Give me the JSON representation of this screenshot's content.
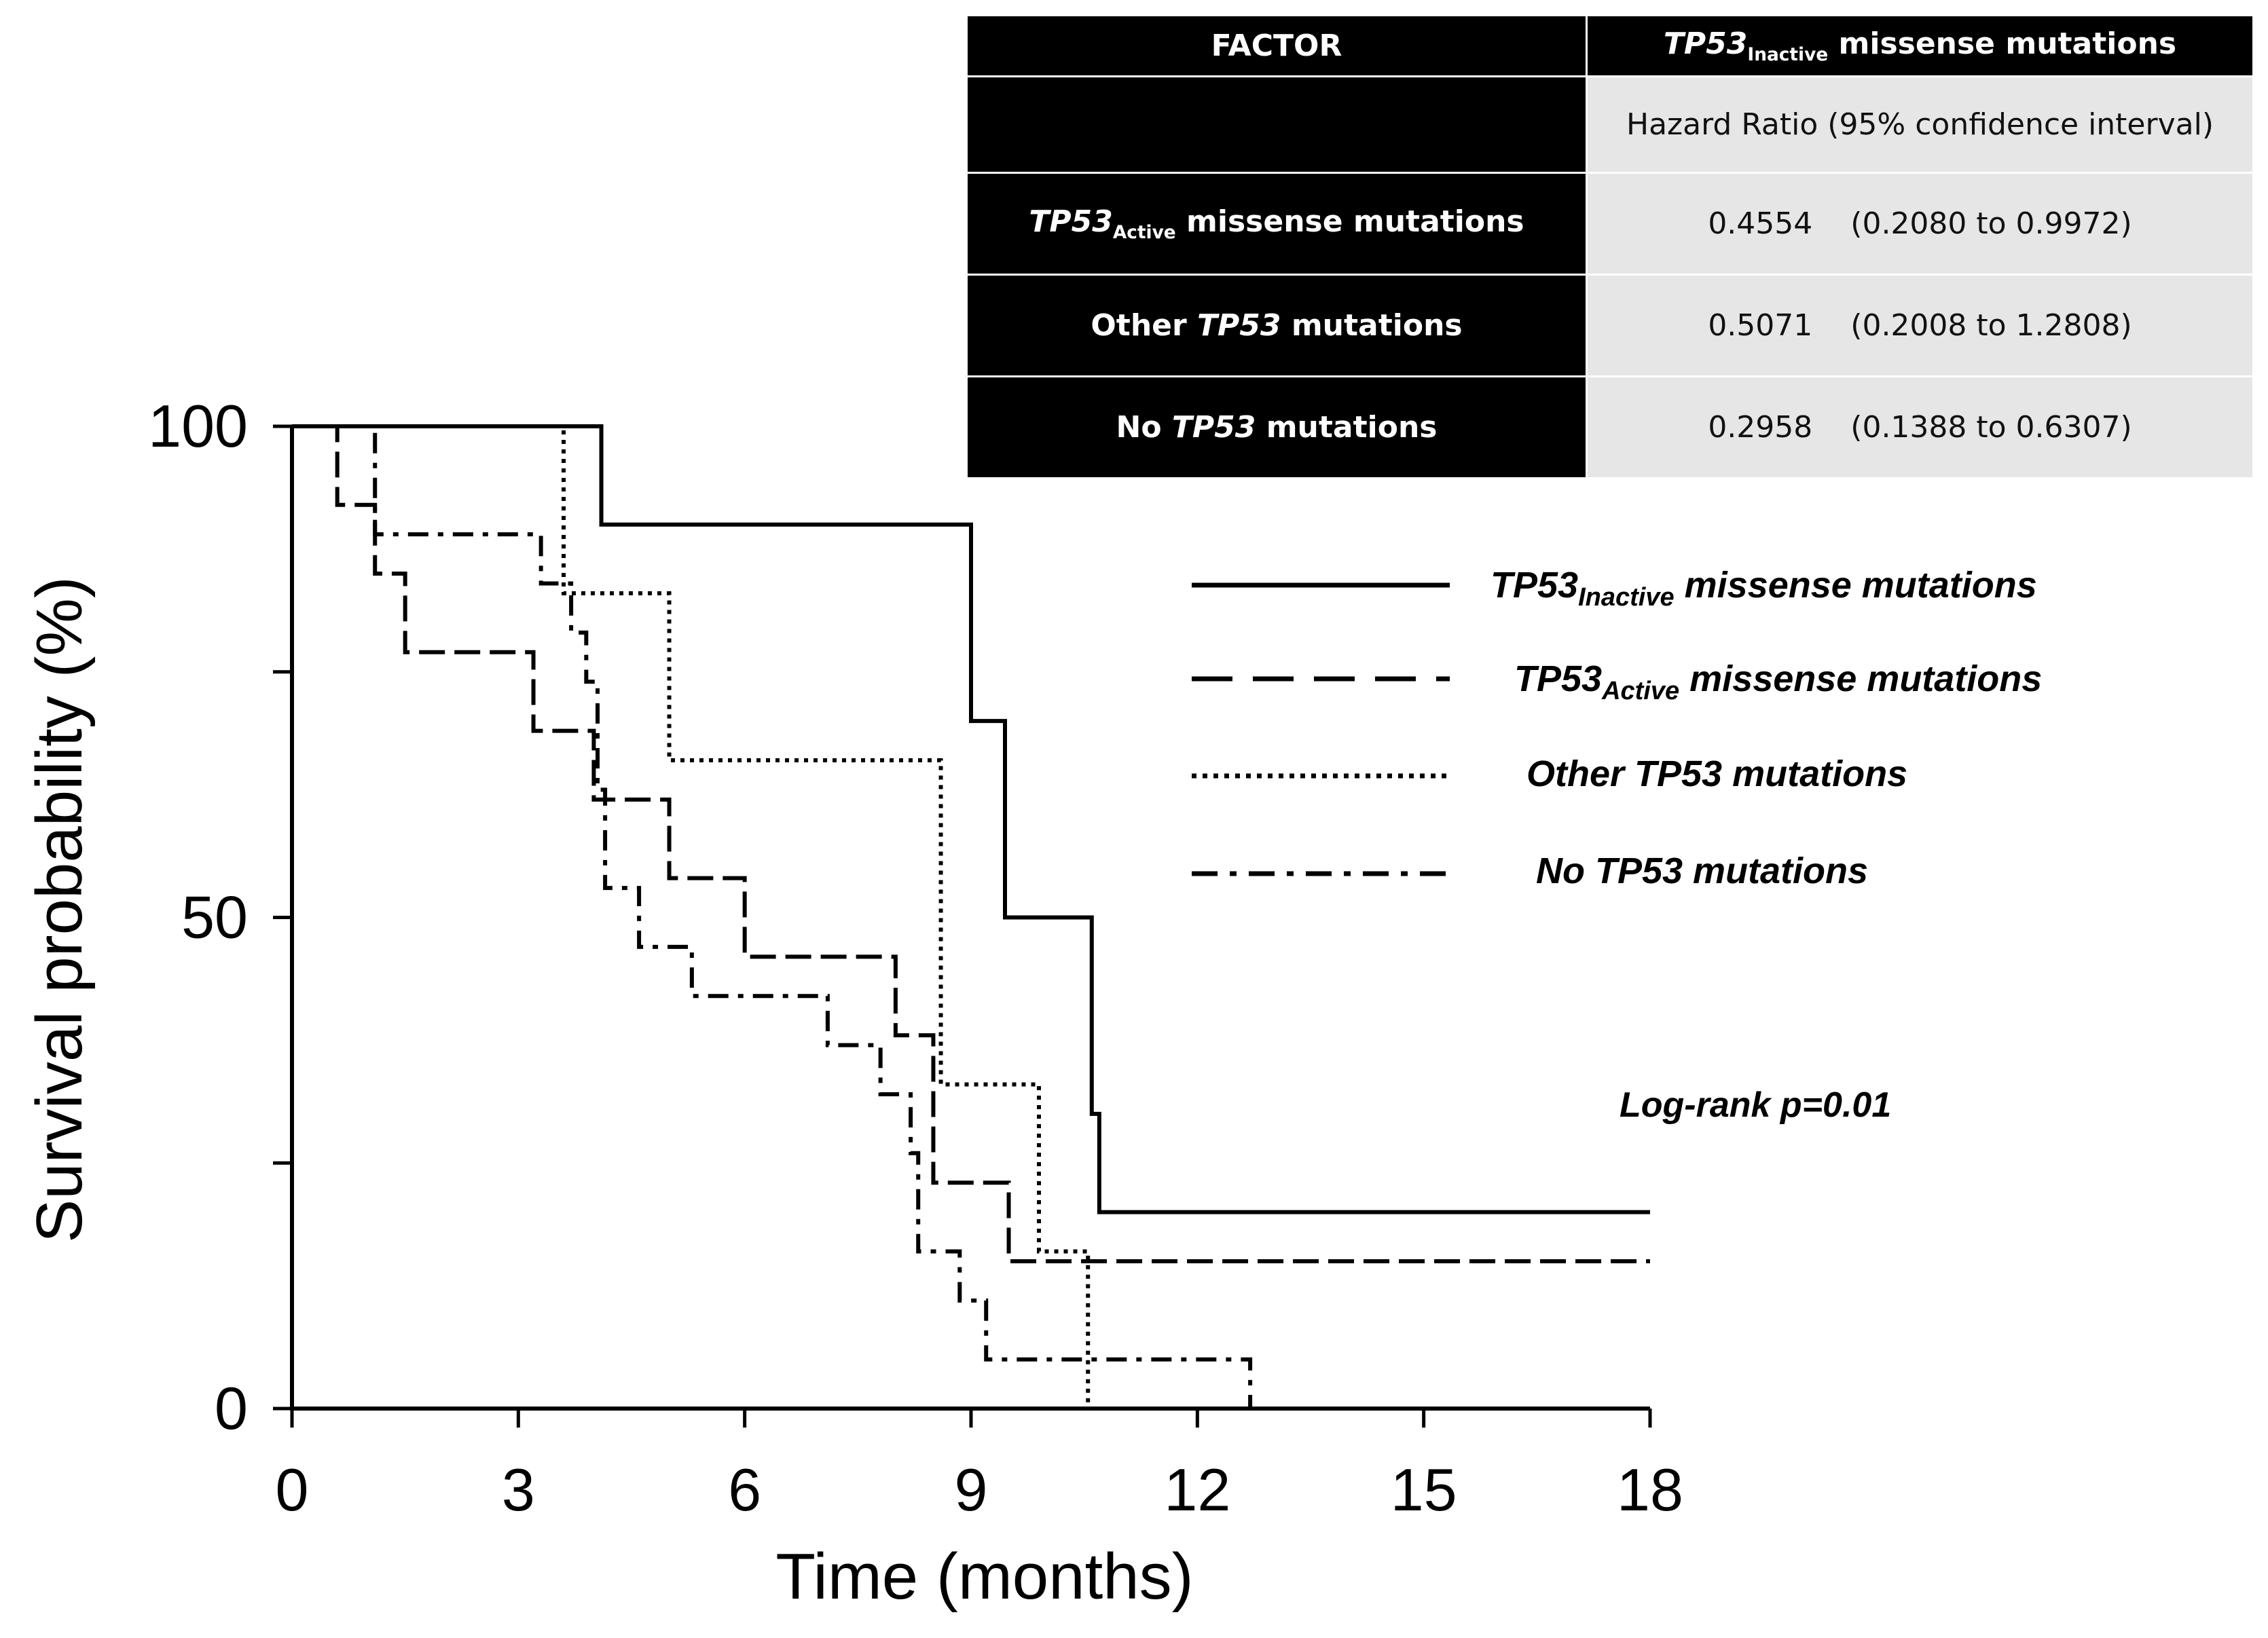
{
  "table": {
    "header": {
      "factor": "FACTOR",
      "col_main": "TP53",
      "col_sub": "Inactive",
      "col_rest": " missense mutations",
      "subheader": "Hazard  Ratio (95% confidence interval)"
    },
    "rows": [
      {
        "label_main": "TP53",
        "label_sub": "Active",
        "label_rest": " missense mutations",
        "hr": "0.4554",
        "ci": "(0.2080 to 0.9972)"
      },
      {
        "label_pre": "Other ",
        "label_main": "TP53",
        "label_rest": " mutations",
        "hr": "0.5071",
        "ci": "(0.2008 to 1.2808)"
      },
      {
        "label_pre": "No ",
        "label_main": "TP53",
        "label_rest": " mutations",
        "hr": "0.2958",
        "ci": "(0.1388 to 0.6307)"
      }
    ]
  },
  "annotation": "Log-rank p=0.01",
  "chart_data": {
    "type": "line",
    "subtype": "kaplan-meier step",
    "title": "",
    "xlabel": "Time (months)",
    "ylabel": "Survival probability (%)",
    "xlim": [
      0,
      18
    ],
    "ylim": [
      0,
      100
    ],
    "xticks": [
      0,
      3,
      6,
      9,
      12,
      15,
      18
    ],
    "yticks": [
      0,
      25,
      50,
      75,
      100
    ],
    "ytick_labels": [
      "0",
      "",
      "50",
      "",
      "100"
    ],
    "legend_position": "right",
    "series": [
      {
        "name_main": "TP53",
        "name_sub": "Inactive",
        "name_rest": " missense mutations",
        "style": "solid",
        "x": [
          0,
          4.1,
          9.0,
          9.45,
          10.6,
          10.7,
          18
        ],
        "y": [
          100,
          90,
          70,
          50,
          30,
          20,
          20
        ]
      },
      {
        "name_main": "TP53",
        "name_sub": "Active",
        "name_rest": " missense mutations",
        "style": "dashed",
        "x": [
          0,
          0.6,
          1.1,
          1.5,
          3.2,
          4.0,
          5.0,
          6.0,
          8.0,
          8.5,
          9.5,
          18
        ],
        "y": [
          100,
          92,
          85,
          77,
          69,
          62,
          54,
          46,
          38,
          23,
          15,
          15
        ]
      },
      {
        "name": "Other TP53 mutations",
        "style": "dotted",
        "x": [
          0,
          3.5,
          3.6,
          5.0,
          8.6,
          9.9,
          10.55
        ],
        "y": [
          100,
          100,
          83,
          66,
          33,
          16,
          0
        ]
      },
      {
        "name": "No TP53 mutations",
        "style": "dashdot",
        "x": [
          0,
          1.1,
          3.3,
          3.7,
          3.9,
          4.05,
          4.15,
          4.6,
          5.3,
          7.1,
          7.8,
          8.2,
          8.3,
          8.85,
          9.2,
          12.7
        ],
        "y": [
          100,
          89,
          84,
          79,
          74,
          63,
          53,
          47,
          42,
          37,
          32,
          26,
          16,
          11,
          5,
          0
        ]
      }
    ]
  }
}
